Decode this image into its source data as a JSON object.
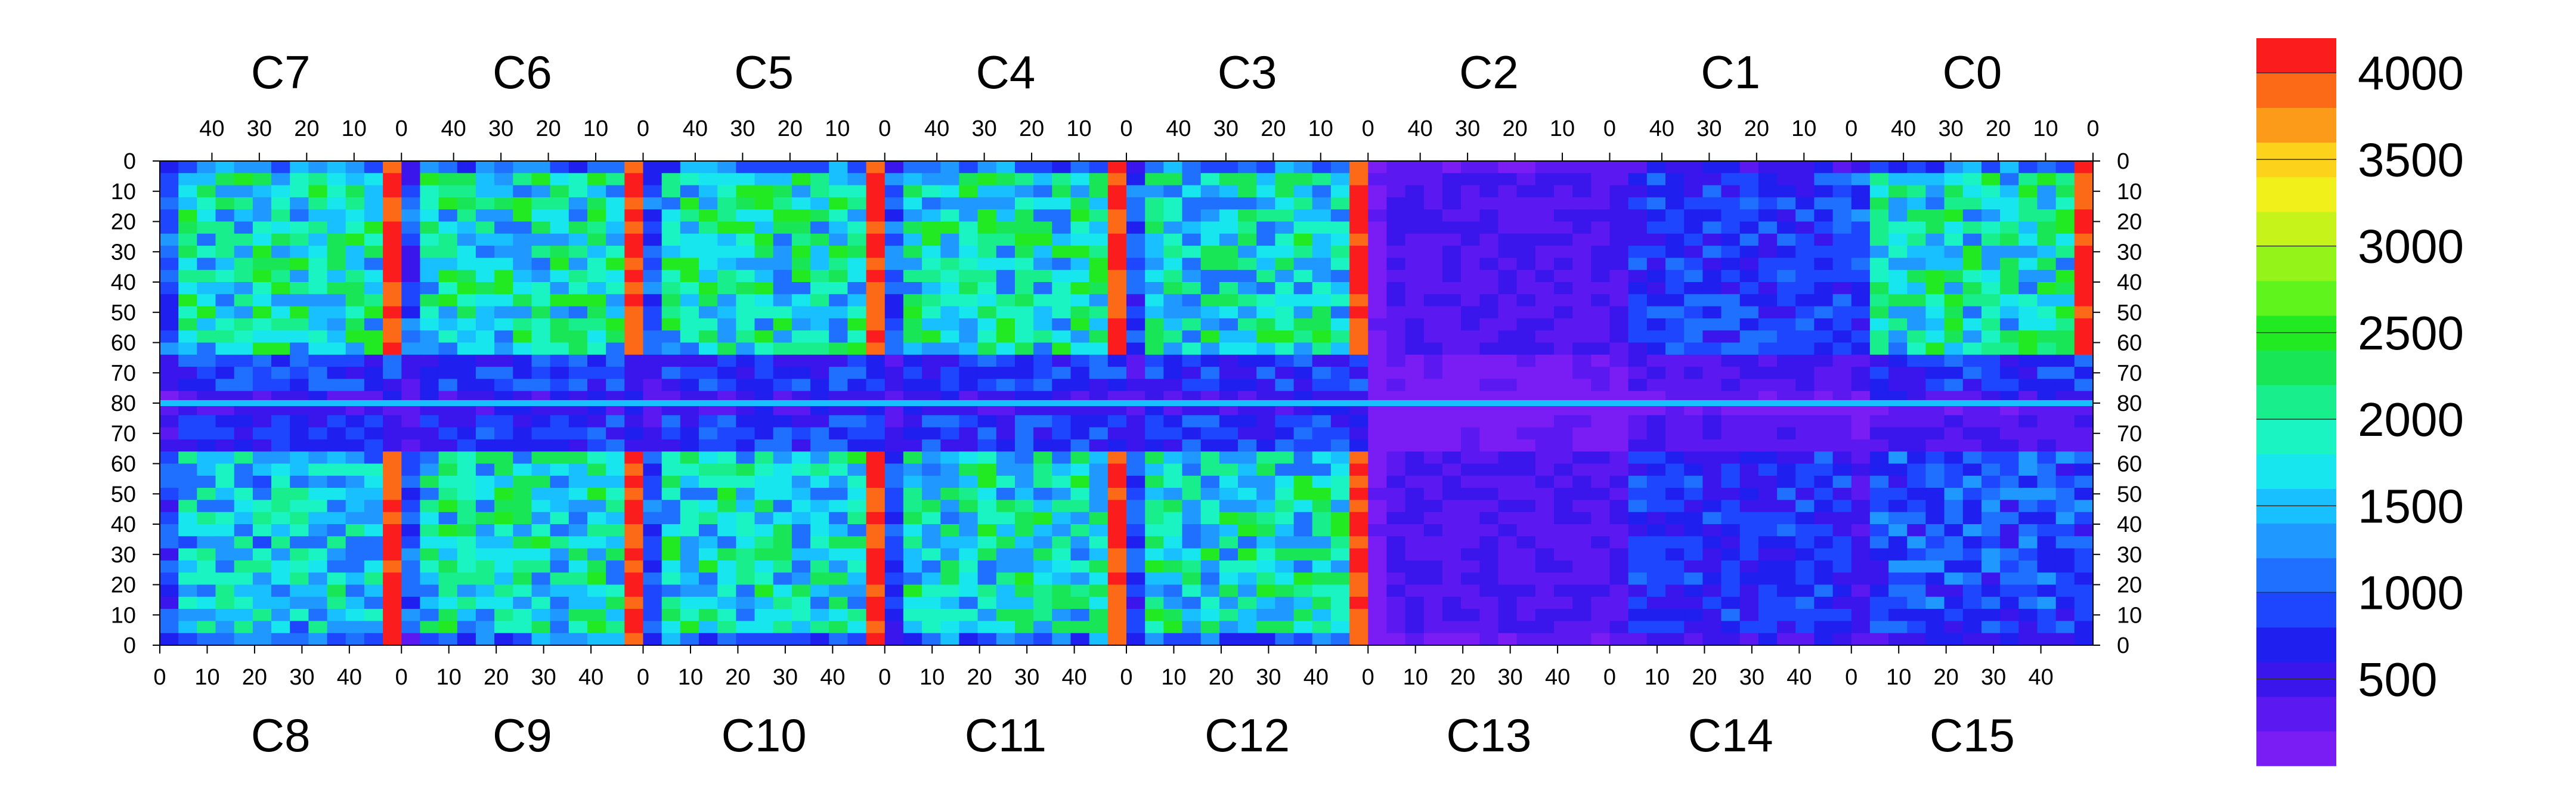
{
  "chart_data": {
    "type": "heatmap",
    "title": "",
    "xlabel": "",
    "ylabel": "",
    "top_chips": [
      "C7",
      "C6",
      "C5",
      "C4",
      "C3",
      "C2",
      "C1",
      "C0"
    ],
    "bottom_chips": [
      "C8",
      "C9",
      "C10",
      "C11",
      "C12",
      "C13",
      "C14",
      "C15"
    ],
    "top_x_ticks": [
      "40",
      "30",
      "20",
      "10",
      "0"
    ],
    "bottom_x_ticks": [
      "0",
      "10",
      "20",
      "30",
      "40"
    ],
    "top_x_range": [
      51,
      0
    ],
    "bottom_x_range": [
      0,
      51
    ],
    "y_ticks": [
      "0",
      "10",
      "20",
      "30",
      "40",
      "50",
      "60",
      "70",
      "80",
      "70",
      "60",
      "50",
      "40",
      "30",
      "20",
      "10",
      "0"
    ],
    "y_range_top_half": [
      0,
      80
    ],
    "y_range_bottom_half": [
      80,
      0
    ],
    "colorbar": {
      "ticks": [
        "500",
        "1000",
        "1500",
        "2000",
        "2500",
        "3000",
        "3500",
        "4000"
      ],
      "tick_values": [
        500,
        1000,
        1500,
        2000,
        2500,
        3000,
        3500,
        4000
      ],
      "min": 0,
      "max": 4200,
      "colors": [
        "#7a1cf4",
        "#5c18f0",
        "#3a16ec",
        "#1f1ff0",
        "#1f46ff",
        "#1f70ff",
        "#1f98ff",
        "#19c0ff",
        "#17e6ee",
        "#19f4c2",
        "#19ee8c",
        "#19e657",
        "#22ea22",
        "#5ef41c",
        "#94f41a",
        "#c6f41a",
        "#f2f01a",
        "#fcd21a",
        "#fc9a1a",
        "#fc6a18",
        "#fb1d1d"
      ]
    },
    "chips": [
      {
        "name": "C7",
        "half": "top",
        "level": 2000,
        "hot_column": "right"
      },
      {
        "name": "C6",
        "half": "top",
        "level": 2000,
        "hot_column": "right"
      },
      {
        "name": "C5",
        "half": "top",
        "level": 2000,
        "hot_column": "right"
      },
      {
        "name": "C4",
        "half": "top",
        "level": 2000,
        "hot_column": "right"
      },
      {
        "name": "C3",
        "half": "top",
        "level": 1900,
        "hot_column": "right"
      },
      {
        "name": "C2",
        "half": "top",
        "level": 400,
        "hot_column": "none"
      },
      {
        "name": "C1",
        "half": "top",
        "level": 900,
        "hot_column": "none"
      },
      {
        "name": "C0",
        "half": "top",
        "level": 2000,
        "hot_column": "right"
      },
      {
        "name": "C8",
        "half": "bottom",
        "level": 1700,
        "hot_column": "right"
      },
      {
        "name": "C9",
        "half": "bottom",
        "level": 1900,
        "hot_column": "right"
      },
      {
        "name": "C10",
        "half": "bottom",
        "level": 1900,
        "hot_column": "right"
      },
      {
        "name": "C11",
        "half": "bottom",
        "level": 1900,
        "hot_column": "right"
      },
      {
        "name": "C12",
        "half": "bottom",
        "level": 1900,
        "hot_column": "right"
      },
      {
        "name": "C13",
        "half": "bottom",
        "level": 400,
        "hot_column": "none"
      },
      {
        "name": "C14",
        "half": "bottom",
        "level": 800,
        "hot_column": "none"
      },
      {
        "name": "C15",
        "half": "bottom",
        "level": 1000,
        "hot_column": "none"
      }
    ]
  }
}
